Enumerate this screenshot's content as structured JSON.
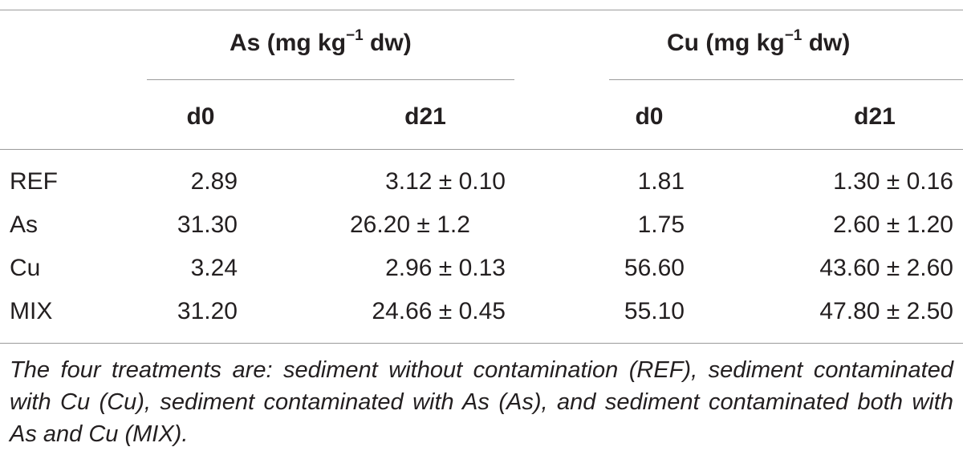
{
  "table": {
    "group_headers": [
      {
        "name": "As",
        "unit_prefix": "(mg kg",
        "exponent": "−1",
        "unit_suffix": " dw)"
      },
      {
        "name": "Cu",
        "unit_prefix": "(mg kg",
        "exponent": "−1",
        "unit_suffix": " dw)"
      }
    ],
    "sub_headers": [
      "d0",
      "d21",
      "d0",
      "d21"
    ],
    "rows": [
      {
        "label": "REF",
        "values": [
          "2.89",
          "3.12 ± 0.10",
          "1.81",
          "1.30 ± 0.16"
        ]
      },
      {
        "label": "As",
        "values": [
          "31.30",
          "26.20 ± 1.2",
          "1.75",
          "2.60 ± 1.20"
        ]
      },
      {
        "label": "Cu",
        "values": [
          "3.24",
          "2.96 ± 0.13",
          "56.60",
          "43.60 ± 2.60"
        ]
      },
      {
        "label": "MIX",
        "values": [
          "31.20",
          "24.66 ± 0.45",
          "55.10",
          "47.80 ± 2.50"
        ]
      }
    ],
    "footnote": "The four treatments are: sediment without contamination (REF), sediment contaminated with Cu (Cu), sediment contaminated with As (As), and sediment contaminated both with As and Cu (MIX)."
  }
}
